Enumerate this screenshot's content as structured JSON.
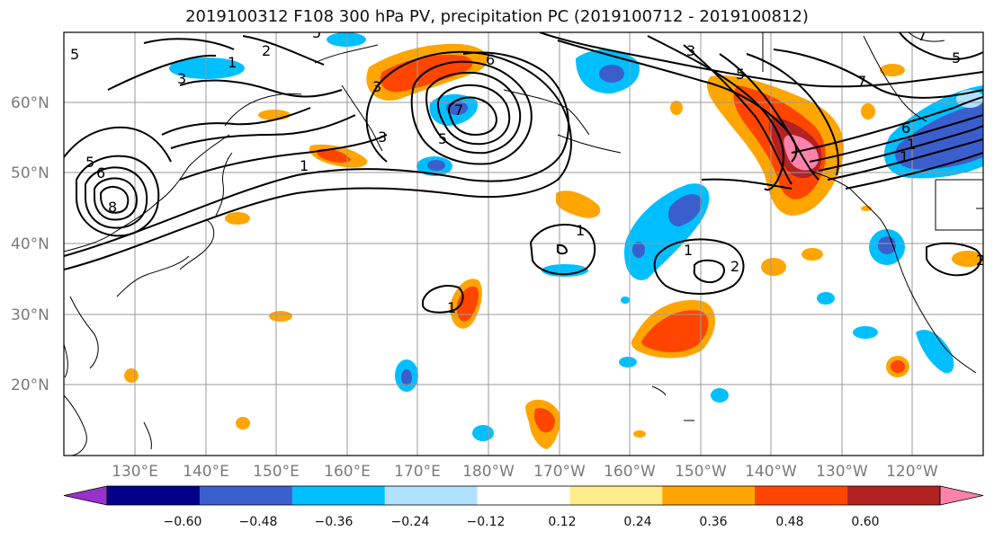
{
  "title": "2019100312 F108 300 hPa PV, precipitation PC (2019100712 - 2019100812)",
  "axes": {
    "lat_labels": [
      "60°N",
      "50°N",
      "40°N",
      "30°N",
      "20°N"
    ],
    "lon_labels": [
      "130°E",
      "140°E",
      "150°E",
      "160°E",
      "170°E",
      "180°W",
      "170°W",
      "160°W",
      "150°W",
      "140°W",
      "130°W",
      "120°W"
    ],
    "grid": true
  },
  "colorbar": {
    "labels": [
      "−0.60",
      "−0.48",
      "−0.36",
      "−0.24",
      "−0.12",
      "0.12",
      "0.24",
      "0.36",
      "0.48",
      "0.60"
    ],
    "colors": [
      "#9932cc",
      "#00008b",
      "#3a5fcd",
      "#00bfff",
      "#b0e2ff",
      "#ffffff",
      "#ffec8b",
      "#ffa500",
      "#ff4500",
      "#b22222",
      "#ff82ab"
    ]
  },
  "contour_labels": [
    {
      "text": "5",
      "id": "c1"
    },
    {
      "text": "1",
      "id": "c2"
    },
    {
      "text": "2",
      "id": "c3"
    },
    {
      "text": "3",
      "id": "c4"
    },
    {
      "text": "5",
      "id": "c5"
    },
    {
      "text": "8",
      "id": "c6"
    },
    {
      "text": "6",
      "id": "c7"
    },
    {
      "text": "7",
      "id": "c8"
    },
    {
      "text": "3",
      "id": "c9"
    },
    {
      "text": "5",
      "id": "c10"
    },
    {
      "text": "1",
      "id": "c11"
    },
    {
      "text": "3",
      "id": "c12"
    },
    {
      "text": "5",
      "id": "c13"
    },
    {
      "text": "7",
      "id": "c14"
    },
    {
      "text": "6",
      "id": "c15"
    },
    {
      "text": "2",
      "id": "c16"
    },
    {
      "text": "1",
      "id": "c17"
    },
    {
      "text": "1",
      "id": "c18"
    },
    {
      "text": "2",
      "id": "c19"
    },
    {
      "text": "1",
      "id": "c20"
    },
    {
      "text": "1",
      "id": "c21"
    },
    {
      "text": "5",
      "id": "c22"
    },
    {
      "text": "3",
      "id": "c23"
    },
    {
      "text": "7",
      "id": "c24"
    },
    {
      "text": "6",
      "id": "c25"
    },
    {
      "text": "5",
      "id": "c26"
    },
    {
      "text": "1",
      "id": "c27"
    }
  ]
}
